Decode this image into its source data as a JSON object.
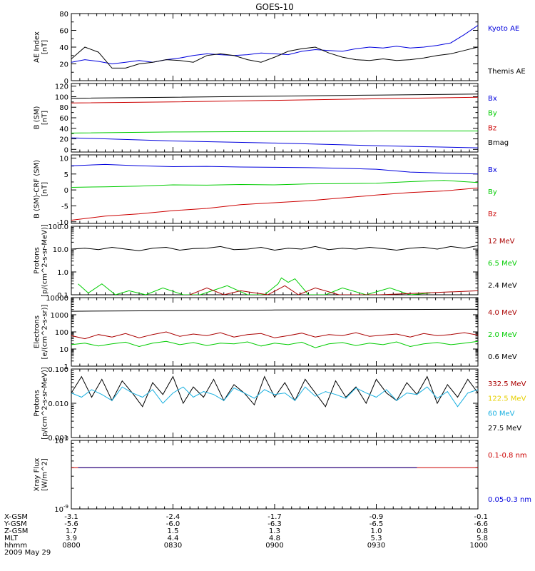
{
  "title": "GOES-10",
  "colors": {
    "black": "#000000",
    "blue": "#0000dd",
    "red": "#cc0000",
    "green": "#00cc00",
    "cyan": "#1ab0e0",
    "yellow": "#e6d000",
    "darkred": "#aa0000",
    "navy": "#000099"
  },
  "chart_data": [
    {
      "type": "line",
      "ylabel": "AE Index\n[nT]",
      "ylim": [
        0,
        80
      ],
      "yscale": "linear",
      "yticks": [
        0,
        20,
        40,
        60,
        80
      ],
      "ytick_labels": [
        "0",
        "20",
        "40",
        "60",
        "80"
      ],
      "legend": [
        {
          "label": "Kyoto AE",
          "color": "#0000dd"
        },
        {
          "label": "Themis AE",
          "color": "#000000"
        }
      ],
      "series": [
        {
          "name": "Kyoto AE",
          "color": "#0000dd",
          "x": [
            0,
            4,
            8,
            12,
            16,
            20,
            24,
            28,
            32,
            36,
            40,
            44,
            48,
            52,
            56,
            60,
            64,
            68,
            72,
            76,
            80,
            84,
            88,
            92,
            96,
            100,
            104,
            108,
            112,
            116,
            120
          ],
          "y": [
            22,
            25,
            23,
            20,
            22,
            24,
            22,
            25,
            27,
            30,
            32,
            31,
            30,
            31,
            33,
            32,
            31,
            35,
            37,
            36,
            35,
            38,
            40,
            39,
            41,
            39,
            40,
            42,
            45,
            55,
            66
          ]
        },
        {
          "name": "Themis AE",
          "color": "#000000",
          "x": [
            0,
            4,
            8,
            12,
            16,
            20,
            24,
            28,
            32,
            36,
            40,
            44,
            48,
            52,
            56,
            60,
            64,
            68,
            72,
            76,
            80,
            84,
            88,
            92,
            96,
            100,
            104,
            108,
            112,
            116,
            120
          ],
          "y": [
            26,
            40,
            34,
            15,
            15,
            20,
            22,
            25,
            24,
            22,
            30,
            32,
            30,
            25,
            22,
            28,
            35,
            38,
            40,
            33,
            28,
            25,
            24,
            26,
            24,
            25,
            27,
            30,
            32,
            36,
            40
          ]
        }
      ]
    },
    {
      "type": "line",
      "ylabel": "B (SM)\n[nT]",
      "ylim": [
        -5,
        125
      ],
      "yscale": "linear",
      "yticks": [
        0,
        20,
        40,
        60,
        80,
        100,
        120
      ],
      "ytick_labels": [
        "0",
        "20",
        "40",
        "60",
        "80",
        "100",
        "120"
      ],
      "legend": [
        {
          "label": "Bx",
          "color": "#0000dd"
        },
        {
          "label": "By",
          "color": "#00cc00"
        },
        {
          "label": "Bz",
          "color": "#cc0000"
        },
        {
          "label": "Bmag",
          "color": "#000000"
        }
      ],
      "series": [
        {
          "name": "Bx",
          "color": "#0000dd",
          "x": [
            0,
            30,
            60,
            90,
            120
          ],
          "y": [
            22,
            16,
            12,
            7,
            3
          ]
        },
        {
          "name": "By",
          "color": "#00cc00",
          "x": [
            0,
            30,
            60,
            90,
            120
          ],
          "y": [
            31,
            33,
            34,
            35,
            35
          ]
        },
        {
          "name": "Bz",
          "color": "#cc0000",
          "x": [
            0,
            30,
            60,
            90,
            120
          ],
          "y": [
            88,
            90,
            93,
            96,
            99
          ]
        },
        {
          "name": "Bmag",
          "color": "#000000",
          "x": [
            0,
            30,
            60,
            90,
            120
          ],
          "y": [
            97,
            99,
            101,
            103,
            105
          ]
        }
      ]
    },
    {
      "type": "line",
      "ylabel": "B (SM)-CRF (SM)\n[nT]",
      "ylim": [
        -10.5,
        11
      ],
      "yscale": "linear",
      "yticks": [
        -10,
        -5,
        0,
        5,
        10
      ],
      "ytick_labels": [
        "-10",
        "-5",
        "0",
        "5",
        "10"
      ],
      "legend": [
        {
          "label": "Bx",
          "color": "#0000dd"
        },
        {
          "label": "By",
          "color": "#00cc00"
        },
        {
          "label": "Bz",
          "color": "#cc0000"
        }
      ],
      "series": [
        {
          "name": "Bx",
          "color": "#0000dd",
          "x": [
            0,
            10,
            20,
            30,
            40,
            50,
            60,
            70,
            80,
            90,
            100,
            110,
            120
          ],
          "y": [
            7.6,
            8,
            7.6,
            7.3,
            7.4,
            7.2,
            7.1,
            7,
            6.8,
            6.5,
            5.6,
            5.3,
            5
          ]
        },
        {
          "name": "By",
          "color": "#00cc00",
          "x": [
            0,
            10,
            20,
            30,
            40,
            50,
            60,
            70,
            80,
            90,
            100,
            110,
            120
          ],
          "y": [
            0.8,
            1,
            1.2,
            1.6,
            1.5,
            1.7,
            1.6,
            1.9,
            2,
            2.1,
            2.6,
            3,
            2.3
          ]
        },
        {
          "name": "Bz",
          "color": "#cc0000",
          "x": [
            0,
            10,
            20,
            30,
            40,
            50,
            60,
            70,
            80,
            90,
            100,
            110,
            120
          ],
          "y": [
            -9.5,
            -8.2,
            -7.5,
            -6.5,
            -5.8,
            -4.6,
            -4,
            -3.4,
            -2.5,
            -1.6,
            -0.8,
            -0.3,
            0.6
          ]
        }
      ]
    },
    {
      "type": "line",
      "ylabel": "Protons\n[p/(cm^2-s-sr-MeV)]",
      "ylim": [
        0.1,
        100
      ],
      "yscale": "log",
      "yticks": [
        0.1,
        1,
        10,
        100
      ],
      "ytick_labels": [
        "0.1",
        "1.0",
        "10.0",
        "100.0"
      ],
      "legend": [
        {
          "label": "12 MeV",
          "color": "#aa0000"
        },
        {
          "label": "6.5 MeV",
          "color": "#00cc00"
        },
        {
          "label": "2.4 MeV",
          "color": "#000000"
        }
      ],
      "series": [
        {
          "name": "2.4 MeV",
          "color": "#000000",
          "x": [
            0,
            4,
            8,
            12,
            16,
            20,
            24,
            28,
            32,
            36,
            40,
            44,
            48,
            52,
            56,
            60,
            64,
            68,
            72,
            76,
            80,
            84,
            88,
            92,
            96,
            100,
            104,
            108,
            112,
            116,
            120
          ],
          "y": [
            10,
            11,
            9.5,
            12,
            10,
            8.5,
            11,
            12,
            9,
            10.5,
            11,
            13,
            9.5,
            10,
            12,
            9,
            11,
            10,
            13,
            9.5,
            11,
            10,
            12,
            10.5,
            9,
            11,
            12,
            10,
            13,
            11,
            14
          ]
        },
        {
          "name": "6.5 MeV",
          "color": "#00cc00",
          "x": [
            2,
            5,
            9,
            13,
            17,
            22,
            27,
            33,
            38,
            46,
            52,
            57,
            61,
            62,
            64,
            66,
            70,
            75,
            80,
            87,
            94,
            100,
            106
          ],
          "y": [
            0.3,
            0.12,
            0.3,
            0.1,
            0.15,
            0.1,
            0.2,
            0.1,
            0.1,
            0.25,
            0.1,
            0.1,
            0.3,
            0.55,
            0.35,
            0.5,
            0.1,
            0.1,
            0.2,
            0.1,
            0.2,
            0.1,
            0.12
          ]
        },
        {
          "name": "12 MeV",
          "color": "#aa0000",
          "x": [
            35,
            40,
            45,
            50,
            58,
            63,
            67,
            72,
            79,
            91,
            120
          ],
          "y": [
            0.1,
            0.2,
            0.1,
            0.15,
            0.1,
            0.25,
            0.1,
            0.2,
            0.1,
            0.1,
            0.15
          ]
        }
      ]
    },
    {
      "type": "line",
      "ylabel": "Electrons\n[e/(cm^2-s-sr)]",
      "ylim": [
        1,
        10000
      ],
      "yscale": "log",
      "yticks": [
        1,
        10,
        100,
        1000,
        10000
      ],
      "ytick_labels": [
        "1",
        "10",
        "100",
        "1000",
        "10000"
      ],
      "legend": [
        {
          "label": "4.0 MeV",
          "color": "#aa0000"
        },
        {
          "label": "2.0 MeV",
          "color": "#00cc00"
        },
        {
          "label": "0.6 MeV",
          "color": "#000000"
        }
      ],
      "series": [
        {
          "name": "0.6 MeV",
          "color": "#000000",
          "x": [
            0,
            30,
            60,
            90,
            120
          ],
          "y": [
            1600,
            1750,
            1900,
            2000,
            2100
          ]
        },
        {
          "name": "4.0 MeV",
          "color": "#aa0000",
          "x": [
            0,
            4,
            8,
            12,
            16,
            20,
            24,
            28,
            32,
            36,
            40,
            44,
            48,
            52,
            56,
            60,
            64,
            68,
            72,
            76,
            80,
            84,
            88,
            92,
            96,
            100,
            104,
            108,
            112,
            116,
            120
          ],
          "y": [
            60,
            40,
            70,
            50,
            80,
            45,
            70,
            100,
            55,
            75,
            60,
            90,
            50,
            70,
            80,
            45,
            60,
            85,
            50,
            70,
            60,
            90,
            55,
            65,
            75,
            50,
            80,
            60,
            70,
            90,
            65
          ]
        },
        {
          "name": "2.0 MeV",
          "color": "#00cc00",
          "x": [
            0,
            4,
            8,
            12,
            16,
            20,
            24,
            28,
            32,
            36,
            40,
            44,
            48,
            52,
            56,
            60,
            64,
            68,
            72,
            76,
            80,
            84,
            88,
            92,
            96,
            100,
            104,
            108,
            112,
            116,
            120
          ],
          "y": [
            18,
            22,
            15,
            20,
            25,
            14,
            22,
            28,
            18,
            24,
            16,
            22,
            20,
            26,
            15,
            22,
            18,
            25,
            12,
            20,
            24,
            16,
            22,
            18,
            26,
            14,
            20,
            24,
            18,
            22,
            28
          ]
        }
      ]
    },
    {
      "type": "line",
      "ylabel": "Protons\n[p/(cm^2-s-sr-MeV)]",
      "ylim": [
        0.001,
        0.1
      ],
      "yscale": "log",
      "yticks": [
        0.001,
        0.01,
        0.1
      ],
      "ytick_labels": [
        "0.001",
        "0.010",
        "0.100"
      ],
      "legend": [
        {
          "label": "332.5 MeV",
          "color": "#aa0000"
        },
        {
          "label": "122.5 MeV",
          "color": "#e6d000"
        },
        {
          "label": "60 MeV",
          "color": "#1ab0e0"
        },
        {
          "label": "27.5 MeV",
          "color": "#000000"
        }
      ],
      "series": [
        {
          "name": "27.5 MeV",
          "color": "#000000",
          "x": [
            0,
            3,
            6,
            9,
            12,
            15,
            18,
            21,
            24,
            27,
            30,
            33,
            36,
            39,
            42,
            45,
            48,
            51,
            54,
            57,
            60,
            63,
            66,
            69,
            72,
            75,
            78,
            81,
            84,
            87,
            90,
            93,
            96,
            99,
            102,
            105,
            108,
            111,
            114,
            117,
            120
          ],
          "y": [
            0.02,
            0.06,
            0.015,
            0.05,
            0.012,
            0.045,
            0.02,
            0.008,
            0.04,
            0.018,
            0.06,
            0.01,
            0.03,
            0.015,
            0.05,
            0.012,
            0.035,
            0.02,
            0.009,
            0.06,
            0.015,
            0.04,
            0.012,
            0.05,
            0.02,
            0.008,
            0.045,
            0.015,
            0.03,
            0.01,
            0.05,
            0.02,
            0.012,
            0.04,
            0.018,
            0.06,
            0.01,
            0.035,
            0.015,
            0.05,
            0.02
          ]
        },
        {
          "name": "60 MeV",
          "color": "#1ab0e0",
          "x": [
            0,
            3,
            6,
            9,
            12,
            15,
            18,
            21,
            24,
            27,
            30,
            33,
            36,
            39,
            42,
            45,
            48,
            51,
            54,
            57,
            60,
            63,
            66,
            69,
            72,
            75,
            78,
            81,
            84,
            87,
            90,
            93,
            96,
            99,
            102,
            105,
            108,
            111,
            114,
            117,
            120
          ],
          "y": [
            0.02,
            0.015,
            0.025,
            0.018,
            0.012,
            0.03,
            0.02,
            0.015,
            0.025,
            0.01,
            0.02,
            0.03,
            0.015,
            0.022,
            0.018,
            0.012,
            0.028,
            0.02,
            0.014,
            0.025,
            0.018,
            0.02,
            0.012,
            0.03,
            0.016,
            0.022,
            0.018,
            0.014,
            0.028,
            0.02,
            0.015,
            0.025,
            0.012,
            0.02,
            0.018,
            0.03,
            0.014,
            0.022,
            0.008,
            0.02,
            0.025
          ]
        }
      ]
    },
    {
      "type": "line",
      "ylabel": "Xray Flux\n[W/m^2]",
      "ylim": [
        1e-09,
        1e-08
      ],
      "yscale": "log",
      "yticks": [
        1e-09,
        1e-08
      ],
      "ytick_labels": [
        "10^-9",
        "10^-8"
      ],
      "legend": [
        {
          "label": "0.1-0.8 nm",
          "color": "#cc0000"
        },
        {
          "label": "0.05-0.3 nm",
          "color": "#0000dd"
        }
      ],
      "series": [
        {
          "name": "0.1-0.8 nm",
          "color": "#cc0000",
          "x": [
            0,
            120
          ],
          "y": [
            4e-09,
            4e-09
          ]
        },
        {
          "name": "0.05-0.3 nm",
          "color": "#000099",
          "x": [
            2,
            18,
            30,
            45,
            62,
            70,
            88,
            102
          ],
          "y": [
            4e-09,
            4e-09,
            4e-09,
            4e-09,
            4e-09,
            4e-09,
            4e-09,
            4e-09
          ]
        }
      ]
    }
  ],
  "xaxis": {
    "range": [
      0,
      120
    ],
    "tick_positions": [
      0,
      30,
      60,
      90,
      120
    ],
    "rows": [
      {
        "label": "X-GSM",
        "values": [
          "-3.1",
          "-2.4",
          "-1.7",
          "-0.9",
          "-0.1"
        ]
      },
      {
        "label": "Y-GSM",
        "values": [
          "-5.6",
          "-6.0",
          "-6.3",
          "-6.5",
          "-6.6"
        ]
      },
      {
        "label": "Z-GSM",
        "values": [
          "1.7",
          "1.5",
          "1.3",
          "1.0",
          "0.8"
        ]
      },
      {
        "label": "MLT",
        "values": [
          "3.9",
          "4.4",
          "4.8",
          "5.3",
          "5.8"
        ]
      },
      {
        "label": "hhmm",
        "values": [
          "0800",
          "0830",
          "0900",
          "0930",
          "1000"
        ]
      }
    ],
    "date": "2009 May 29"
  }
}
